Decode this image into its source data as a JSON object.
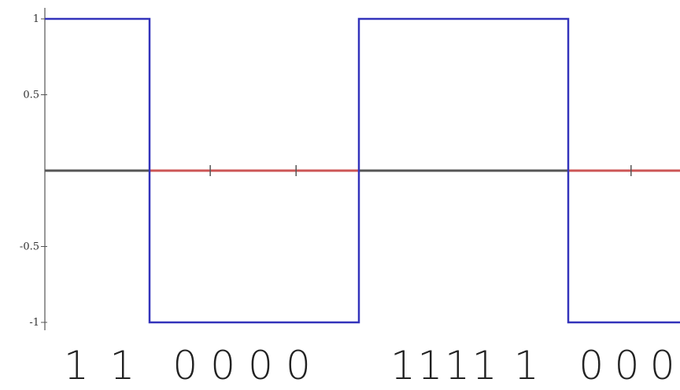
{
  "chart_data": {
    "type": "line",
    "title": "",
    "xlabel": "",
    "ylabel": "",
    "ylim": [
      -1,
      1
    ],
    "yticks": [
      {
        "value": 1,
        "label": "1"
      },
      {
        "value": 0.5,
        "label": "0.5"
      },
      {
        "value": -0.5,
        "label": "-0.5"
      },
      {
        "value": -1,
        "label": "-1"
      }
    ],
    "grid": false,
    "series": [
      {
        "color": "#3333bb",
        "x": [
          0,
          0.5,
          0.5,
          1.5,
          1.5,
          2.5,
          2.5,
          3.05
        ],
        "values": [
          1,
          1,
          -1,
          -1,
          1,
          1,
          -1,
          -1
        ]
      }
    ],
    "zero_line": {
      "segments": [
        {
          "x0": 0,
          "x1": 0.5,
          "color": "#555555"
        },
        {
          "x0": 0.5,
          "x1": 1.5,
          "color": "#cc5555"
        },
        {
          "x0": 1.5,
          "x1": 2.5,
          "color": "#555555"
        },
        {
          "x0": 2.5,
          "x1": 3.05,
          "color": "#cc5555"
        }
      ],
      "tick_marks": [
        0.79,
        1.2,
        2.8
      ]
    },
    "bit_labels": [
      {
        "x": 0.15,
        "text": "1"
      },
      {
        "x": 0.37,
        "text": "1"
      },
      {
        "x": 0.67,
        "text": "0"
      },
      {
        "x": 0.85,
        "text": "0"
      },
      {
        "x": 1.03,
        "text": "0"
      },
      {
        "x": 1.21,
        "text": "0"
      },
      {
        "x": 1.71,
        "text": "1"
      },
      {
        "x": 1.84,
        "text": "1"
      },
      {
        "x": 1.97,
        "text": "1"
      },
      {
        "x": 2.1,
        "text": "1"
      },
      {
        "x": 2.3,
        "text": "1"
      },
      {
        "x": 2.61,
        "text": "0"
      },
      {
        "x": 2.78,
        "text": "0"
      },
      {
        "x": 2.95,
        "text": "0"
      }
    ],
    "colors": {
      "signal": "#3333bb",
      "axis": "#555555",
      "zero_line_red": "#cc5555"
    }
  }
}
